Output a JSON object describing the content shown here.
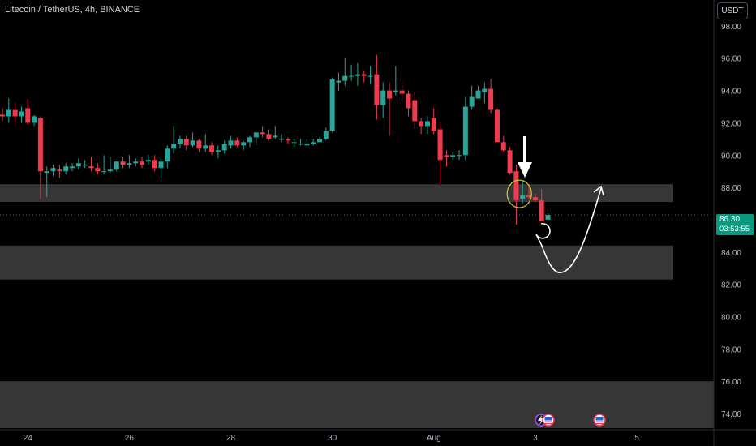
{
  "chart_title": "Litecoin / TetherUS, 4h, BINANCE",
  "currency_button": "USDT",
  "last_price": {
    "value": "86.30",
    "countdown": "03:53:55"
  },
  "colors": {
    "up": "#26a69a",
    "down": "#ef3b4e",
    "price_line": "#089981",
    "zone": "#363636",
    "annotation": "#ffffff",
    "highlight_circle": "#c6c230"
  },
  "chart_data": {
    "type": "candlestick",
    "symbol": "LTCUSDT",
    "timeframe": "4h",
    "exchange": "BINANCE",
    "ylim": [
      73,
      99.6
    ],
    "y_ticks": [
      "98.00",
      "96.00",
      "94.00",
      "92.00",
      "90.00",
      "88.00",
      "84.00",
      "82.00",
      "80.00",
      "78.00",
      "76.00",
      "74.00"
    ],
    "x_ticks": [
      {
        "label": "24",
        "index": 4
      },
      {
        "label": "26",
        "index": 20
      },
      {
        "label": "28",
        "index": 36
      },
      {
        "label": "30",
        "index": 52
      },
      {
        "label": "Aug",
        "index": 68
      },
      {
        "label": "3",
        "index": 84
      },
      {
        "label": "5",
        "index": 100
      }
    ],
    "x_range": [
      0,
      114
    ],
    "zones": [
      {
        "low": 87.1,
        "high": 88.2
      },
      {
        "low": 82.3,
        "high": 84.4
      },
      {
        "low": 73.1,
        "high": 76.0
      }
    ],
    "candles": [
      [
        92.5,
        92.9,
        92.1,
        92.4
      ],
      [
        92.4,
        93.5,
        92.0,
        92.8
      ],
      [
        92.8,
        93.2,
        92.0,
        92.4
      ],
      [
        92.4,
        93.0,
        92.0,
        92.7
      ],
      [
        92.9,
        93.5,
        91.9,
        92.0
      ],
      [
        92.0,
        92.5,
        91.8,
        92.4
      ],
      [
        92.3,
        92.4,
        87.3,
        89.0
      ],
      [
        88.9,
        89.3,
        87.4,
        89.0
      ],
      [
        89.0,
        89.4,
        88.7,
        89.2
      ],
      [
        89.1,
        89.4,
        88.6,
        89.0
      ],
      [
        89.0,
        89.5,
        88.8,
        89.3
      ],
      [
        89.2,
        89.5,
        89.0,
        89.3
      ],
      [
        89.3,
        89.8,
        89.1,
        89.5
      ],
      [
        89.4,
        89.7,
        89.2,
        89.4
      ],
      [
        89.3,
        89.9,
        89.0,
        89.2
      ],
      [
        89.2,
        89.5,
        88.8,
        89.0
      ],
      [
        89.0,
        90.0,
        88.8,
        89.0
      ],
      [
        89.0,
        89.9,
        88.9,
        89.1
      ],
      [
        89.1,
        89.6,
        89.0,
        89.6
      ],
      [
        89.6,
        89.9,
        89.2,
        89.4
      ],
      [
        89.4,
        90.0,
        89.2,
        89.5
      ],
      [
        89.5,
        89.8,
        89.3,
        89.6
      ],
      [
        89.6,
        89.9,
        89.2,
        89.4
      ],
      [
        89.6,
        90.0,
        89.4,
        89.7
      ],
      [
        89.7,
        90.0,
        89.0,
        89.2
      ],
      [
        89.2,
        89.8,
        88.6,
        89.6
      ],
      [
        89.6,
        90.6,
        89.2,
        90.4
      ],
      [
        90.4,
        91.8,
        90.1,
        90.7
      ],
      [
        90.7,
        91.2,
        90.4,
        91.0
      ],
      [
        91.0,
        91.2,
        90.3,
        90.6
      ],
      [
        90.6,
        91.4,
        90.5,
        90.9
      ],
      [
        90.9,
        91.0,
        90.2,
        90.4
      ],
      [
        90.4,
        91.3,
        90.2,
        90.6
      ],
      [
        90.6,
        90.8,
        90.0,
        90.2
      ],
      [
        90.2,
        90.6,
        89.8,
        90.3
      ],
      [
        90.3,
        90.9,
        90.1,
        90.7
      ],
      [
        90.6,
        91.2,
        90.4,
        90.9
      ],
      [
        90.9,
        91.1,
        90.5,
        90.6
      ],
      [
        90.6,
        90.9,
        90.3,
        90.8
      ],
      [
        90.8,
        91.2,
        90.5,
        91.1
      ],
      [
        91.1,
        91.4,
        90.6,
        91.4
      ],
      [
        91.4,
        91.8,
        91.1,
        91.3
      ],
      [
        91.3,
        91.6,
        90.9,
        91.0
      ],
      [
        91.1,
        91.8,
        91.0,
        91.2
      ],
      [
        91.0,
        91.3,
        90.8,
        91.0
      ],
      [
        91.0,
        91.1,
        90.7,
        90.9
      ],
      [
        90.8,
        91.0,
        90.5,
        90.8
      ],
      [
        90.7,
        91.0,
        90.6,
        90.7
      ],
      [
        90.6,
        91.0,
        90.6,
        90.7
      ],
      [
        90.7,
        91.0,
        90.6,
        90.8
      ],
      [
        90.8,
        91.1,
        90.8,
        91.0
      ],
      [
        91.0,
        91.7,
        90.9,
        91.5
      ],
      [
        91.5,
        94.8,
        91.4,
        94.7
      ],
      [
        94.5,
        95.1,
        94.0,
        94.6
      ],
      [
        94.6,
        96.0,
        94.3,
        94.9
      ],
      [
        94.9,
        95.6,
        94.6,
        94.9
      ],
      [
        94.9,
        95.7,
        94.3,
        95.0
      ],
      [
        95.0,
        95.2,
        94.5,
        94.9
      ],
      [
        94.9,
        95.5,
        94.4,
        94.9
      ],
      [
        95.0,
        96.2,
        92.2,
        93.1
      ],
      [
        93.1,
        94.5,
        92.3,
        94.0
      ],
      [
        94.0,
        94.5,
        91.2,
        93.5
      ],
      [
        93.9,
        95.5,
        93.7,
        94.0
      ],
      [
        94.0,
        94.5,
        93.3,
        93.8
      ],
      [
        93.8,
        94.0,
        92.4,
        92.9
      ],
      [
        93.4,
        93.9,
        91.6,
        92.1
      ],
      [
        92.1,
        92.3,
        91.3,
        91.8
      ],
      [
        91.8,
        92.4,
        91.3,
        92.1
      ],
      [
        92.3,
        92.9,
        91.3,
        91.5
      ],
      [
        91.6,
        92.0,
        88.2,
        89.7
      ],
      [
        90.0,
        90.3,
        89.3,
        89.9
      ],
      [
        89.9,
        90.2,
        89.7,
        90.0
      ],
      [
        90.0,
        90.3,
        89.7,
        90.0
      ],
      [
        90.0,
        93.6,
        89.7,
        93.0
      ],
      [
        93.0,
        94.3,
        92.8,
        93.6
      ],
      [
        93.5,
        94.3,
        93.5,
        94.0
      ],
      [
        93.9,
        94.5,
        93.2,
        94.1
      ],
      [
        94.1,
        94.7,
        92.6,
        92.8
      ],
      [
        92.8,
        92.9,
        90.8,
        90.8
      ],
      [
        90.8,
        91.2,
        90.2,
        90.3
      ],
      [
        90.3,
        90.5,
        88.8,
        88.9
      ],
      [
        89.0,
        89.4,
        85.7,
        87.2
      ],
      [
        87.3,
        88.4,
        87.0,
        87.5
      ],
      [
        87.5,
        88.2,
        87.3,
        87.4
      ],
      [
        87.4,
        87.6,
        87.1,
        87.2
      ],
      [
        87.2,
        87.9,
        85.9,
        85.9
      ],
      [
        86.0,
        86.4,
        85.8,
        86.3
      ]
    ]
  }
}
